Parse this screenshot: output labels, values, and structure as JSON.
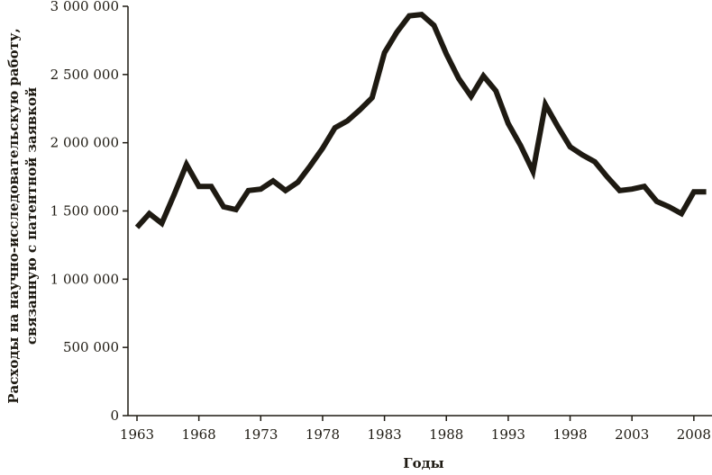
{
  "chart_data": {
    "type": "line",
    "title": "",
    "xlabel": "Годы",
    "ylabel_lines": [
      "Расходы на научно-исследовательскую работу,",
      "связанную с патентной заявкой"
    ],
    "xlim": [
      1963,
      2010
    ],
    "ylim": [
      0,
      3000000
    ],
    "x_ticks": [
      1963,
      1968,
      1973,
      1978,
      1983,
      1988,
      1993,
      1998,
      2003,
      2008
    ],
    "x_tick_labels": [
      "1963",
      "1968",
      "1973",
      "1978",
      "1983",
      "1988",
      "1993",
      "1998",
      "2003",
      "2008"
    ],
    "y_ticks": [
      0,
      500000,
      1000000,
      1500000,
      2000000,
      2500000,
      3000000
    ],
    "y_tick_labels": [
      "0",
      "500 000",
      "1 000 000",
      "1 500 000",
      "2 000 000",
      "2 500 000",
      "3 000 000"
    ],
    "grid": false,
    "line_color": "#1e1a12",
    "series": [
      {
        "x": [
          1963,
          1964,
          1965,
          1966,
          1967,
          1968,
          1969,
          1970,
          1971,
          1972,
          1973,
          1974,
          1975,
          1976,
          1977,
          1978,
          1979,
          1980,
          1981,
          1982,
          1983,
          1984,
          1985,
          1986,
          1987,
          1988,
          1989,
          1990,
          1991,
          1992,
          1993,
          1994,
          1995,
          1996,
          1997,
          1998,
          1999,
          2000,
          2001,
          2002,
          2003,
          2004,
          2005,
          2006,
          2007,
          2008,
          2009
        ],
        "values": [
          1380000,
          1480000,
          1410000,
          1620000,
          1840000,
          1680000,
          1680000,
          1530000,
          1510000,
          1650000,
          1660000,
          1720000,
          1650000,
          1710000,
          1830000,
          1960000,
          2110000,
          2160000,
          2240000,
          2330000,
          2660000,
          2810000,
          2930000,
          2940000,
          2860000,
          2650000,
          2470000,
          2340000,
          2490000,
          2380000,
          2140000,
          1980000,
          1790000,
          2280000,
          2120000,
          1970000,
          1910000,
          1860000,
          1750000,
          1650000,
          1660000,
          1680000,
          1570000,
          1530000,
          1480000,
          1640000,
          1640000
        ]
      }
    ]
  }
}
